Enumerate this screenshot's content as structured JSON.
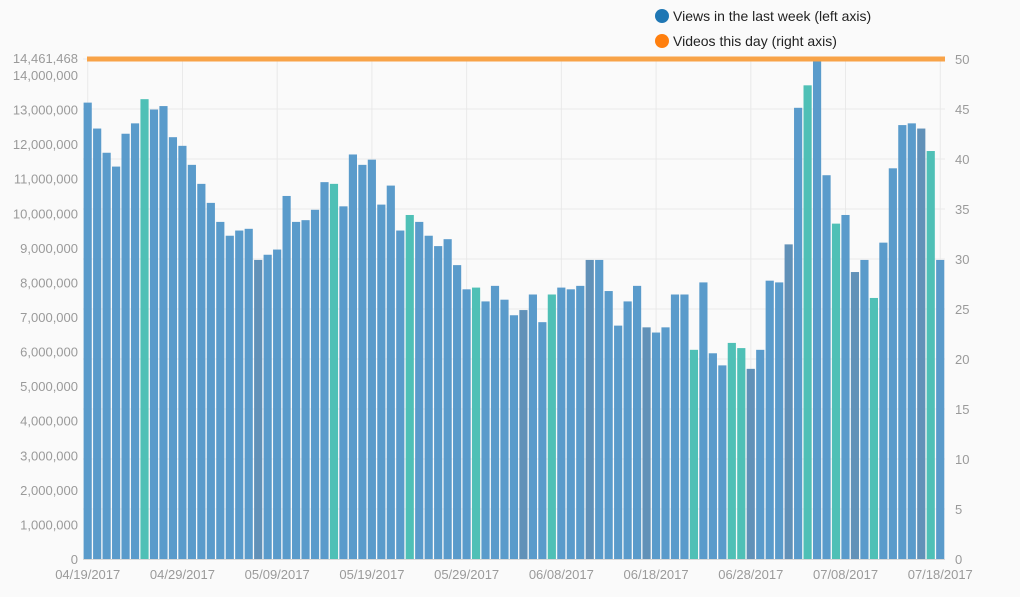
{
  "chart_data": {
    "type": "bar",
    "title": "",
    "xlabel": "",
    "ylabel": "",
    "legend": {
      "placement": "top-right",
      "entries": [
        {
          "name": "Views in the last week (left axis)",
          "color": "#1f77b4"
        },
        {
          "name": "Videos this day (right axis)",
          "color": "#ff7f0e"
        }
      ]
    },
    "colors": {
      "bar": "#5a9bcb",
      "bar_dark": "#6191b8",
      "bar_teal": "#4fc0b6",
      "right_line": "#f8a348",
      "grid": "#e9e9e9",
      "tick": "#9a9a9a"
    },
    "left_axis": {
      "ylim": [
        0,
        14461468
      ],
      "ticks": [
        0,
        1000000,
        2000000,
        3000000,
        4000000,
        5000000,
        6000000,
        7000000,
        8000000,
        9000000,
        10000000,
        11000000,
        12000000,
        13000000,
        14000000
      ],
      "tick_labels": [
        "0",
        "1,000,000",
        "2,000,000",
        "3,000,000",
        "4,000,000",
        "5,000,000",
        "6,000,000",
        "7,000,000",
        "8,000,000",
        "9,000,000",
        "10,000,000",
        "11,000,000",
        "12,000,000",
        "13,000,000",
        "14,000,000"
      ],
      "max_label": "14,461,468"
    },
    "right_axis": {
      "ylim": [
        0,
        50
      ],
      "ticks": [
        0,
        5,
        10,
        15,
        20,
        25,
        30,
        35,
        40,
        45,
        50
      ],
      "tick_labels": [
        "0",
        "5",
        "10",
        "15",
        "20",
        "25",
        "30",
        "35",
        "40",
        "45",
        "50"
      ]
    },
    "x_labels": [
      {
        "index": 0,
        "label": "04/19/2017"
      },
      {
        "index": 10,
        "label": "04/29/2017"
      },
      {
        "index": 20,
        "label": "05/09/2017"
      },
      {
        "index": 30,
        "label": "05/19/2017"
      },
      {
        "index": 40,
        "label": "05/29/2017"
      },
      {
        "index": 50,
        "label": "06/08/2017"
      },
      {
        "index": 60,
        "label": "06/18/2017"
      },
      {
        "index": 70,
        "label": "06/28/2017"
      },
      {
        "index": 80,
        "label": "07/08/2017"
      },
      {
        "index": 90,
        "label": "07/18/2017"
      }
    ],
    "series": [
      {
        "name": "Views in the last week (left axis)",
        "axis": "left",
        "values": [
          13200000,
          12450000,
          11750000,
          11350000,
          12300000,
          12600000,
          13300000,
          13000000,
          13100000,
          12200000,
          11950000,
          11400000,
          10850000,
          10300000,
          9750000,
          9350000,
          9500000,
          9550000,
          8650000,
          8800000,
          8950000,
          10500000,
          9750000,
          9800000,
          10100000,
          10900000,
          10850000,
          10200000,
          11700000,
          11400000,
          11550000,
          10250000,
          10800000,
          9500000,
          9950000,
          9750000,
          9350000,
          9050000,
          9250000,
          8500000,
          7800000,
          7850000,
          7450000,
          7900000,
          7500000,
          7050000,
          7200000,
          7650000,
          6850000,
          7650000,
          7850000,
          7800000,
          7900000,
          8650000,
          8650000,
          7750000,
          6750000,
          7450000,
          7900000,
          6700000,
          6550000,
          6700000,
          7650000,
          7650000,
          6050000,
          8000000,
          5950000,
          5600000,
          6250000,
          6100000,
          5500000,
          6050000,
          8050000,
          8000000,
          9100000,
          13050000,
          13700000,
          14461468,
          11100000,
          9700000,
          9950000,
          8300000,
          8650000,
          7550000,
          9150000,
          11300000,
          12550000,
          12600000,
          12450000,
          11800000,
          8650000
        ],
        "color_codes": [
          0,
          0,
          0,
          0,
          0,
          0,
          2,
          0,
          0,
          0,
          0,
          0,
          0,
          0,
          0,
          0,
          0,
          0,
          1,
          0,
          0,
          0,
          0,
          0,
          0,
          0,
          2,
          0,
          0,
          0,
          0,
          0,
          0,
          0,
          2,
          0,
          0,
          0,
          0,
          0,
          0,
          2,
          0,
          0,
          0,
          0,
          1,
          0,
          0,
          2,
          0,
          0,
          0,
          1,
          0,
          0,
          0,
          0,
          0,
          1,
          0,
          0,
          0,
          0,
          2,
          0,
          0,
          0,
          2,
          2,
          1,
          0,
          0,
          0,
          1,
          0,
          2,
          0,
          0,
          2,
          0,
          1,
          0,
          2,
          0,
          0,
          0,
          0,
          1,
          2,
          0
        ]
      },
      {
        "name": "Videos this day (right axis)",
        "axis": "right",
        "type": "line",
        "values": [
          50,
          50
        ]
      }
    ]
  }
}
